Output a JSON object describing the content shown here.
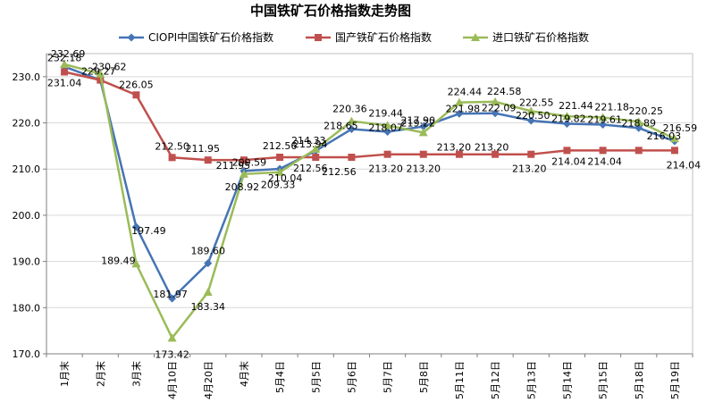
{
  "chart_data": {
    "type": "line",
    "title": "中国铁矿石价格指数走势图",
    "categories": [
      "1月末",
      "2月末",
      "3月末",
      "4月10日",
      "4月20日",
      "4月末",
      "5月4日",
      "5月5日",
      "5月6日",
      "5月7日",
      "5月8日",
      "5月11日",
      "5月12日",
      "5月13日",
      "5月14日",
      "5月15日",
      "5月18日",
      "5月19日"
    ],
    "ylim": [
      170,
      235
    ],
    "yticks": [
      "170.0",
      "180.0",
      "190.0",
      "200.0",
      "210.0",
      "220.0",
      "230.0"
    ],
    "yticks_values": [
      170,
      180,
      190,
      200,
      210,
      220,
      230
    ],
    "grid": true,
    "legend_position": "top",
    "series": [
      {
        "name": "CIOPI中国铁矿石价格指数",
        "color": "#4674b4",
        "marker": "diamond",
        "values": [
          232.18,
          229.27,
          197.49,
          181.97,
          189.6,
          209.59,
          210.04,
          213.94,
          218.65,
          218.07,
          219.22,
          221.98,
          222.09,
          220.5,
          219.82,
          219.61,
          218.89,
          216.03
        ],
        "labels": [
          "232.18",
          "229.27",
          "197.49",
          "181.97",
          "189.60",
          "209.59",
          "210.04",
          "213.94",
          "218.65",
          "218.07",
          "219.22",
          "221.98",
          "222.09",
          "220.50",
          "219.82",
          "219.61",
          "218.89",
          "216.03"
        ]
      },
      {
        "name": "国产铁矿石价格指数",
        "color": "#c0504d",
        "marker": "square",
        "values": [
          231.04,
          229.27,
          226.05,
          212.5,
          211.95,
          211.95,
          212.56,
          212.56,
          212.56,
          213.2,
          213.2,
          213.2,
          213.2,
          213.2,
          214.04,
          214.04,
          214.04,
          214.04
        ],
        "labels": [
          "231.04",
          "",
          "226.05",
          "212.50",
          "211.95",
          "211.95",
          "212.56",
          "212.56",
          "212.56",
          "213.20",
          "213.20",
          "213.20",
          "213.20",
          "213.20",
          "214.04",
          "214.04",
          "",
          "214.04"
        ]
      },
      {
        "name": "进口铁矿石价格指数",
        "color": "#9bbb59",
        "marker": "triangle",
        "values": [
          232.69,
          230.62,
          189.49,
          173.42,
          183.34,
          208.92,
          209.33,
          214.33,
          220.36,
          219.44,
          217.9,
          224.44,
          224.58,
          222.55,
          221.44,
          221.18,
          220.25,
          216.59
        ],
        "labels": [
          "232.69",
          "230.62",
          "189.49",
          "173.42",
          "183.34",
          "208.92",
          "209.33",
          "214.33",
          "220.36",
          "219.44",
          "217.90",
          "224.44",
          "224.58",
          "222.55",
          "221.44",
          "221.18",
          "220.25",
          "216.59"
        ]
      }
    ]
  }
}
